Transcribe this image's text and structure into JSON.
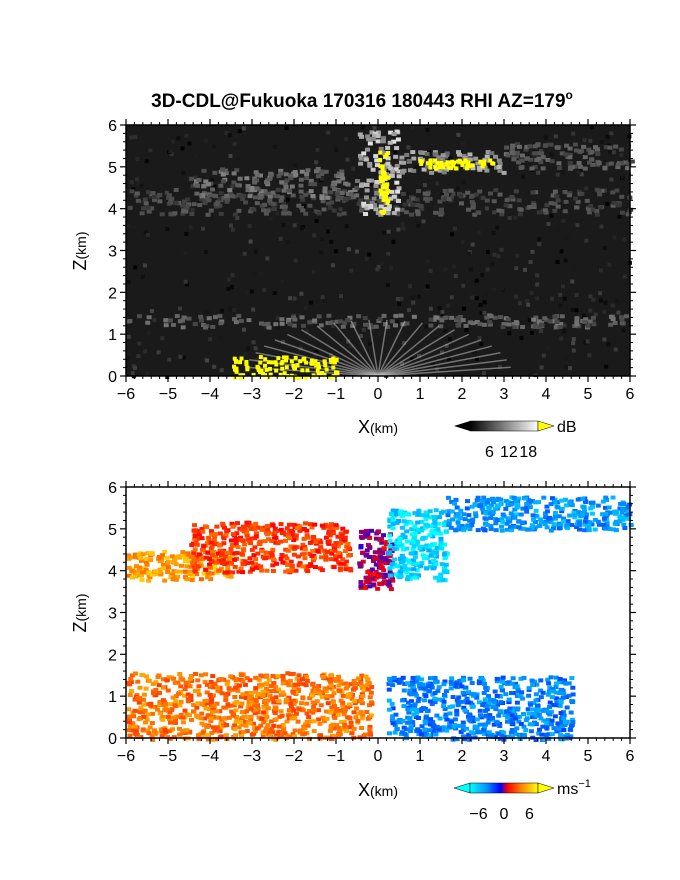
{
  "chart_data": [
    {
      "type": "heatmap",
      "title": "3D-CDL@Fukuoka 170316 180443 RHI AZ=179",
      "title_superscript": "o",
      "xlabel_main": "X",
      "xlabel_unit": "(km)",
      "ylabel_main": "Z",
      "ylabel_unit": "(km)",
      "xlim": [
        -6,
        6
      ],
      "ylim": [
        0,
        6
      ],
      "xticks": [
        "-6",
        "-5",
        "-4",
        "-3",
        "-2",
        "-1",
        "0",
        "1",
        "2",
        "3",
        "4",
        "5",
        "6"
      ],
      "yticks": [
        "0",
        "1",
        "2",
        "3",
        "4",
        "5",
        "6"
      ],
      "background": "#1a1a1a",
      "colorbar": {
        "unit": "dB",
        "ticks": [
          "6",
          "12",
          "18"
        ],
        "range": [
          0,
          21
        ],
        "colors": [
          "#000000",
          "#ffffff"
        ],
        "over_color": "#ffff00"
      },
      "regions": [
        {
          "x": [
            -6,
            6
          ],
          "z": [
            1.2,
            1.5
          ],
          "level": 9
        },
        {
          "x": [
            -6,
            6
          ],
          "z": [
            3.9,
            4.5
          ],
          "level": 7
        },
        {
          "x": [
            -4.5,
            -0.5
          ],
          "z": [
            4.3,
            5.0
          ],
          "level": 10
        },
        {
          "x": [
            -0.5,
            0.5
          ],
          "z": [
            3.9,
            5.9
          ],
          "level": 17
        },
        {
          "x": [
            0.5,
            3.0
          ],
          "z": [
            4.9,
            5.4
          ],
          "level": 14
        },
        {
          "x": [
            3.0,
            6.0
          ],
          "z": [
            5.0,
            5.6
          ],
          "level": 8
        }
      ],
      "saturated": [
        {
          "x": [
            0.0,
            0.2
          ],
          "z": [
            3.9,
            5.4
          ]
        },
        {
          "x": [
            0.9,
            2.8
          ],
          "z": [
            5.0,
            5.2
          ]
        },
        {
          "x": [
            -3.5,
            -1.0
          ],
          "z": [
            0.0,
            0.5
          ]
        }
      ]
    },
    {
      "type": "heatmap",
      "xlabel_main": "X",
      "xlabel_unit": "(km)",
      "ylabel_main": "Z",
      "ylabel_unit": "(km)",
      "xlim": [
        -6,
        6
      ],
      "ylim": [
        0,
        6
      ],
      "xticks": [
        "-6",
        "-5",
        "-4",
        "-3",
        "-2",
        "-1",
        "0",
        "1",
        "2",
        "3",
        "4",
        "5",
        "6"
      ],
      "yticks": [
        "0",
        "1",
        "2",
        "3",
        "4",
        "5",
        "6"
      ],
      "colorbar": {
        "unit": "ms",
        "unit_exp": "−1",
        "ticks": [
          "−6",
          "0",
          "6"
        ],
        "range": [
          -8,
          8
        ],
        "colors": [
          "#00ffff",
          "#0090ff",
          "#0000ff",
          "#ff0000",
          "#ff8000",
          "#ffff00"
        ]
      },
      "regions": [
        {
          "x": [
            -6.0,
            -0.2
          ],
          "z": [
            0.0,
            1.6
          ],
          "velocity": 4.5
        },
        {
          "x": [
            0.2,
            4.6
          ],
          "z": [
            0.0,
            1.5
          ],
          "velocity": -4.5
        },
        {
          "x": [
            -6.0,
            -3.5
          ],
          "z": [
            3.8,
            4.5
          ],
          "velocity": 5.5
        },
        {
          "x": [
            -4.5,
            -0.7
          ],
          "z": [
            4.0,
            5.2
          ],
          "velocity": 3.0
        },
        {
          "x": [
            -0.5,
            0.3
          ],
          "z": [
            3.6,
            5.0
          ],
          "velocity": 0.5
        },
        {
          "x": [
            0.2,
            1.6
          ],
          "z": [
            3.8,
            5.5
          ],
          "velocity": -7.0
        },
        {
          "x": [
            1.6,
            6.0
          ],
          "z": [
            5.0,
            5.8
          ],
          "velocity": -5.0
        }
      ]
    }
  ]
}
